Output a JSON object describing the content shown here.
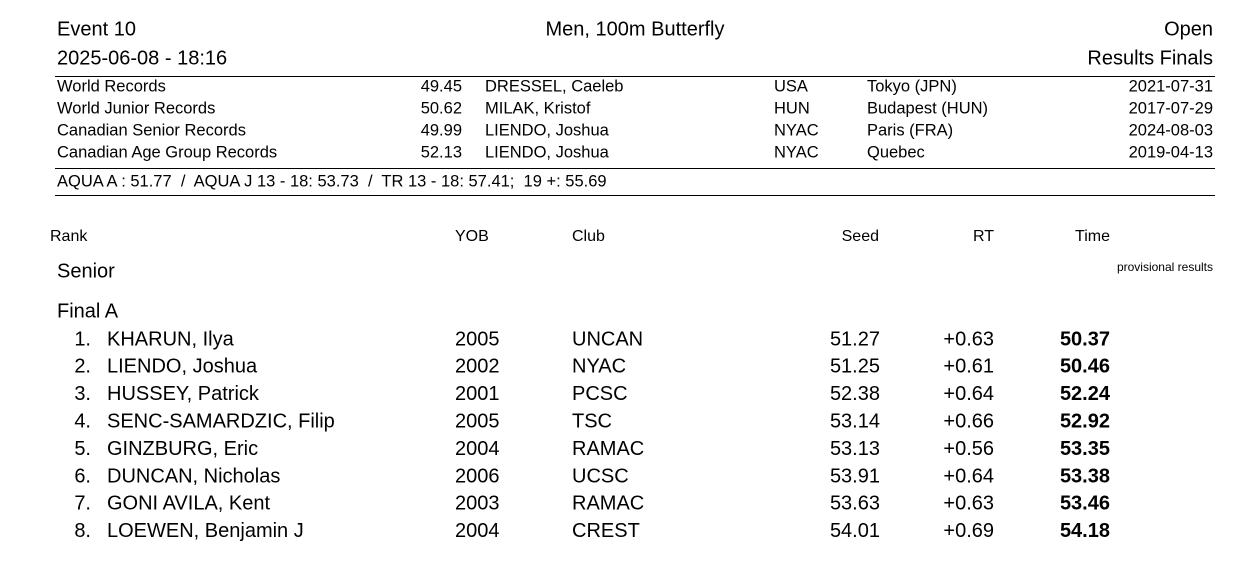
{
  "header": {
    "event": "Event 10",
    "title": "Men, 100m Butterfly",
    "category": "Open",
    "datetime": "2025-06-08 - 18:16",
    "phase": "Results Finals"
  },
  "records": [
    {
      "name": "World Records",
      "time": "49.45",
      "holder": "DRESSEL, Caeleb",
      "nation": "USA",
      "location": "Tokyo (JPN)",
      "date": "2021-07-31"
    },
    {
      "name": "World Junior Records",
      "time": "50.62",
      "holder": "MILAK, Kristof",
      "nation": "HUN",
      "location": "Budapest (HUN)",
      "date": "2017-07-29"
    },
    {
      "name": "Canadian Senior Records",
      "time": "49.99",
      "holder": "LIENDO, Joshua",
      "nation": "NYAC",
      "location": "Paris (FRA)",
      "date": "2024-08-03"
    },
    {
      "name": "Canadian Age Group Records",
      "time": "52.13",
      "holder": "LIENDO, Joshua",
      "nation": "NYAC",
      "location": "Quebec",
      "date": "2019-04-13"
    }
  ],
  "standards": "AQUA A : 51.77  /  AQUA J 13 - 18: 53.73  /  TR 13 - 18: 57.41;  19 +: 55.69",
  "columns": {
    "rank": "Rank",
    "yob": "YOB",
    "club": "Club",
    "seed": "Seed",
    "rt": "RT",
    "time": "Time"
  },
  "section": "Senior",
  "note": "provisional results",
  "group": "Final A",
  "results": [
    {
      "rank": "1.",
      "name": "KHARUN, Ilya",
      "yob": "2005",
      "club": "UNCAN",
      "seed": "51.27",
      "rt": "+0.63",
      "time": "50.37"
    },
    {
      "rank": "2.",
      "name": "LIENDO, Joshua",
      "yob": "2002",
      "club": "NYAC",
      "seed": "51.25",
      "rt": "+0.61",
      "time": "50.46"
    },
    {
      "rank": "3.",
      "name": "HUSSEY, Patrick",
      "yob": "2001",
      "club": "PCSC",
      "seed": "52.38",
      "rt": "+0.64",
      "time": "52.24"
    },
    {
      "rank": "4.",
      "name": "SENC-SAMARDZIC, Filip",
      "yob": "2005",
      "club": "TSC",
      "seed": "53.14",
      "rt": "+0.66",
      "time": "52.92"
    },
    {
      "rank": "5.",
      "name": "GINZBURG, Eric",
      "yob": "2004",
      "club": "RAMAC",
      "seed": "53.13",
      "rt": "+0.56",
      "time": "53.35"
    },
    {
      "rank": "6.",
      "name": "DUNCAN, Nicholas",
      "yob": "2006",
      "club": "UCSC",
      "seed": "53.91",
      "rt": "+0.64",
      "time": "53.38"
    },
    {
      "rank": "7.",
      "name": "GONI AVILA, Kent",
      "yob": "2003",
      "club": "RAMAC",
      "seed": "53.63",
      "rt": "+0.63",
      "time": "53.46"
    },
    {
      "rank": "8.",
      "name": "LOEWEN, Benjamin J",
      "yob": "2004",
      "club": "CREST",
      "seed": "54.01",
      "rt": "+0.69",
      "time": "54.18"
    }
  ]
}
